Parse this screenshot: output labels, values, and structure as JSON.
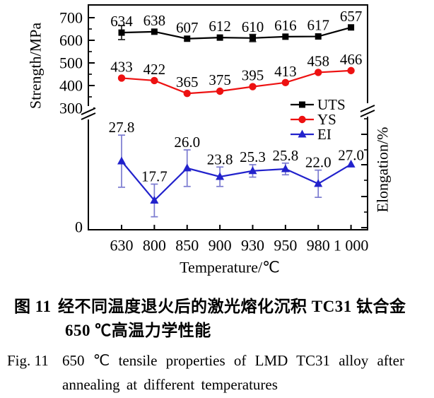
{
  "figure": {
    "caption_cn": {
      "label": "图 11",
      "line1": "经不同温度退火后的激光熔化沉积 TC31 钛合金",
      "line2": "650 ℃高温力学性能"
    },
    "caption_en": {
      "label": "Fig. 11",
      "line1": "650 ℃ tensile properties of LMD TC31 alloy after",
      "line2": "annealing at different temperatures"
    }
  },
  "chart_data": {
    "type": "line",
    "title": "",
    "xlabel": "Temperature/℃",
    "ylabel_left": "Strength/MPa",
    "ylabel_right": "Elongation/%",
    "x_axis_type": "categorical-equal-spacing",
    "x_values": [
      630,
      800,
      850,
      900,
      930,
      950,
      980,
      1000
    ],
    "x_tick_labels": [
      "630",
      "800",
      "850",
      "900",
      "930",
      "950",
      "980",
      "1 000"
    ],
    "left_axis": {
      "tick_labels": [
        "700",
        "600",
        "500",
        "400",
        "300",
        "0"
      ],
      "major_ticks": [
        700,
        600,
        500,
        400,
        300
      ],
      "minor_ticks": [
        650,
        550,
        450,
        350
      ],
      "broken": true,
      "shown_range": [
        300,
        700
      ]
    },
    "right_axis": {
      "has_numeric_labels": false,
      "broken": true
    },
    "grid": false,
    "legend_position": "inside middle-right",
    "legend": [
      "UTS",
      "YS",
      "EI"
    ],
    "series": [
      {
        "name": "UTS",
        "axis": "strength",
        "color": "#000000",
        "marker": "square",
        "values": [
          634,
          638,
          607,
          612,
          610,
          616,
          617,
          657
        ],
        "labels": [
          "634",
          "638",
          "607",
          "612",
          "610",
          "616",
          "617",
          "657"
        ],
        "errors": [
          31,
          0,
          0,
          0,
          16,
          0,
          0,
          0
        ],
        "error_color": "#222222"
      },
      {
        "name": "YS",
        "axis": "strength",
        "color": "#ed1111",
        "marker": "circle",
        "values": [
          433,
          422,
          365,
          375,
          395,
          413,
          458,
          466
        ],
        "labels": [
          "433",
          "422",
          "365",
          "375",
          "395",
          "413",
          "458",
          "466"
        ],
        "errors": [
          0,
          0,
          0,
          0,
          0,
          0,
          0,
          0
        ],
        "error_color": "#ed1111"
      },
      {
        "name": "EI",
        "axis": "elongation",
        "color": "#2222cc",
        "marker": "triangle",
        "values": [
          27.8,
          17.7,
          26.0,
          23.8,
          25.3,
          25.8,
          22.0,
          27.0
        ],
        "labels": [
          "27.8",
          "17.7",
          "26.0",
          "23.8",
          "25.3",
          "25.8",
          "22.0",
          "27.0"
        ],
        "errors": [
          6.7,
          4.2,
          4.7,
          2.5,
          1.6,
          1.5,
          3.5,
          0
        ],
        "error_color": "#7b7bd0"
      }
    ]
  }
}
